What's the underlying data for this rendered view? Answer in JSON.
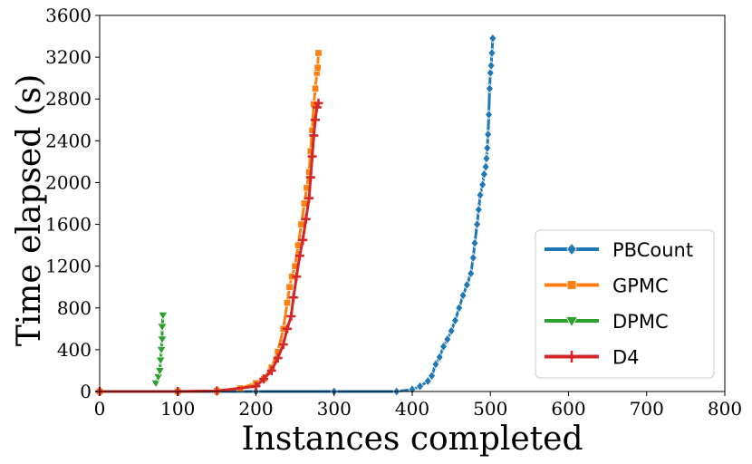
{
  "chart_data": {
    "type": "line",
    "title": "",
    "xlabel": "Instances completed",
    "ylabel": "Time elapsed (s)",
    "xlim": [
      0,
      800
    ],
    "ylim": [
      0,
      3600
    ],
    "xticks": [
      0,
      100,
      200,
      300,
      400,
      500,
      600,
      700,
      800
    ],
    "yticks": [
      0,
      400,
      800,
      1200,
      1600,
      2000,
      2400,
      2800,
      3200,
      3600
    ],
    "grid": false,
    "legend_position": "lower-right",
    "series": [
      {
        "name": "PBCount",
        "color": "#1f77b4",
        "marker": "diamond",
        "x": [
          0,
          100,
          200,
          300,
          380,
          400,
          410,
          420,
          425,
          430,
          435,
          440,
          445,
          450,
          455,
          460,
          465,
          470,
          475,
          478,
          480,
          483,
          485,
          487,
          490,
          492,
          494,
          495,
          496,
          497,
          498,
          499,
          500,
          501,
          502,
          503
        ],
        "y": [
          0,
          0,
          0,
          0,
          0,
          20,
          50,
          100,
          150,
          260,
          330,
          430,
          500,
          580,
          680,
          800,
          920,
          1020,
          1130,
          1280,
          1420,
          1600,
          1740,
          1880,
          1980,
          2080,
          2150,
          2230,
          2330,
          2460,
          2650,
          2900,
          3050,
          3120,
          3240,
          3380
        ]
      },
      {
        "name": "GPMC",
        "color": "#ff7f0e",
        "marker": "square",
        "x": [
          0,
          100,
          150,
          180,
          200,
          210,
          220,
          228,
          235,
          240,
          243,
          246,
          250,
          254,
          258,
          262,
          265,
          268,
          270,
          272,
          274,
          276,
          278,
          279,
          280
        ],
        "y": [
          0,
          0,
          5,
          30,
          80,
          120,
          230,
          380,
          600,
          850,
          1000,
          1100,
          1200,
          1400,
          1600,
          1800,
          1950,
          2100,
          2300,
          2500,
          2750,
          2900,
          3050,
          3100,
          3240
        ]
      },
      {
        "name": "DPMC",
        "color": "#2ca02c",
        "marker": "triangle-down",
        "x": [
          72,
          75,
          77,
          78,
          79,
          80,
          80,
          81
        ],
        "y": [
          80,
          140,
          200,
          300,
          400,
          500,
          620,
          730
        ]
      },
      {
        "name": "D4",
        "color": "#d62728",
        "marker": "plus",
        "x": [
          0,
          100,
          150,
          200,
          210,
          220,
          228,
          235,
          240,
          245,
          248,
          252,
          256,
          260,
          264,
          268,
          270,
          272,
          274,
          276,
          278,
          280
        ],
        "y": [
          0,
          0,
          5,
          50,
          120,
          200,
          320,
          450,
          600,
          720,
          900,
          1100,
          1300,
          1450,
          1650,
          1850,
          2050,
          2250,
          2450,
          2600,
          2720,
          2760
        ]
      }
    ]
  }
}
